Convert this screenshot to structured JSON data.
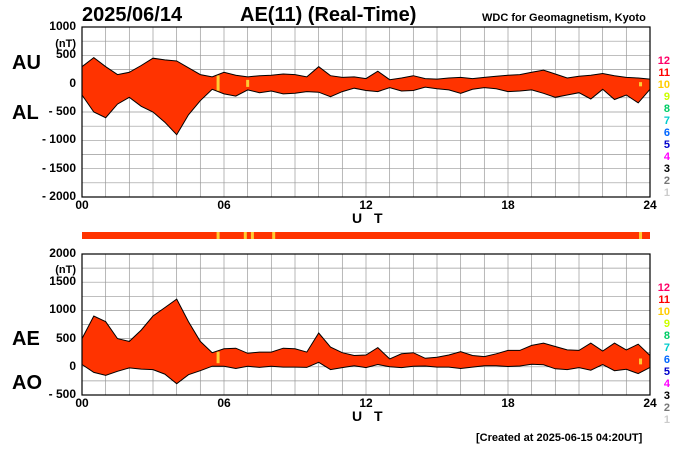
{
  "header": {
    "date": "2025/06/14",
    "title": "AE(11) (Real-Time)",
    "org": "WDC for Geomagnetism, Kyoto"
  },
  "footer": "[Created at 2025-06-15 04:20UT]",
  "colors": {
    "fill": "#ff3300",
    "highlight": "#ffcc33",
    "grid": "#999999",
    "legend": [
      "#cccccc",
      "#777777",
      "#000000",
      "#ff00ff",
      "#0000cc",
      "#0066ff",
      "#00cccc",
      "#00cc66",
      "#ccff00",
      "#ffcc00",
      "#ff0000",
      "#ff0066"
    ]
  },
  "legend": [
    "1",
    "2",
    "3",
    "4",
    "5",
    "6",
    "7",
    "8",
    "9",
    "10",
    "11",
    "12"
  ],
  "chart_data": [
    {
      "type": "area",
      "panel": "AU/AL",
      "series": [
        {
          "name": "AU",
          "x": [
            0,
            0.5,
            1,
            1.5,
            2,
            2.5,
            3,
            3.5,
            4,
            4.5,
            5,
            5.5,
            6,
            6.5,
            7,
            7.5,
            8,
            8.5,
            9,
            9.5,
            10,
            10.5,
            11,
            11.5,
            12,
            12.5,
            13,
            13.5,
            14,
            14.5,
            15,
            15.5,
            16,
            16.5,
            17,
            17.5,
            18,
            18.5,
            19,
            19.5,
            20,
            20.5,
            21,
            21.5,
            22,
            22.5,
            23,
            23.5,
            24
          ],
          "values": [
            300,
            460,
            300,
            160,
            200,
            320,
            450,
            420,
            400,
            280,
            160,
            120,
            200,
            150,
            120,
            140,
            150,
            170,
            160,
            120,
            300,
            140,
            110,
            120,
            90,
            220,
            70,
            100,
            140,
            90,
            80,
            100,
            110,
            90,
            110,
            130,
            150,
            160,
            200,
            240,
            170,
            100,
            130,
            150,
            180,
            140,
            110,
            100,
            80
          ]
        },
        {
          "name": "AL",
          "x": [
            0,
            0.5,
            1,
            1.5,
            2,
            2.5,
            3,
            3.5,
            4,
            4.5,
            5,
            5.5,
            6,
            6.5,
            7,
            7.5,
            8,
            8.5,
            9,
            9.5,
            10,
            10.5,
            11,
            11.5,
            12,
            12.5,
            13,
            13.5,
            14,
            14.5,
            15,
            15.5,
            16,
            16.5,
            17,
            17.5,
            18,
            18.5,
            19,
            19.5,
            20,
            20.5,
            21,
            21.5,
            22,
            22.5,
            23,
            23.5,
            24
          ],
          "values": [
            -200,
            -500,
            -600,
            -360,
            -240,
            -400,
            -500,
            -680,
            -900,
            -550,
            -300,
            -100,
            -180,
            -220,
            -110,
            -160,
            -130,
            -180,
            -170,
            -140,
            -150,
            -230,
            -140,
            -80,
            -120,
            -140,
            -70,
            -130,
            -120,
            -60,
            -90,
            -110,
            -170,
            -100,
            -70,
            -90,
            -140,
            -130,
            -110,
            -170,
            -240,
            -200,
            -160,
            -270,
            -100,
            -280,
            -200,
            -340,
            -100
          ]
        }
      ],
      "xlabel": "U T",
      "ylabel": "(nT)",
      "xlim": [
        0,
        24
      ],
      "ylim": [
        -2000,
        1000
      ],
      "yticks": [
        "1000",
        "500",
        "0",
        "- 500",
        "- 1000",
        "- 1500",
        "- 2000"
      ],
      "xticks": [
        "00",
        "06",
        "12",
        "18",
        "24"
      ],
      "highlights": [
        5.75,
        7.0,
        23.6
      ],
      "grid": true
    },
    {
      "type": "area",
      "panel": "AE/AO",
      "series": [
        {
          "name": "AE",
          "x": [
            0,
            0.5,
            1,
            1.5,
            2,
            2.5,
            3,
            3.5,
            4,
            4.5,
            5,
            5.5,
            6,
            6.5,
            7,
            7.5,
            8,
            8.5,
            9,
            9.5,
            10,
            10.5,
            11,
            11.5,
            12,
            12.5,
            13,
            13.5,
            14,
            14.5,
            15,
            15.5,
            16,
            16.5,
            17,
            17.5,
            18,
            18.5,
            19,
            19.5,
            20,
            20.5,
            21,
            21.5,
            22,
            22.5,
            23,
            23.5,
            24
          ],
          "values": [
            500,
            900,
            800,
            500,
            450,
            650,
            900,
            1050,
            1200,
            800,
            450,
            250,
            320,
            330,
            240,
            260,
            260,
            330,
            320,
            260,
            600,
            350,
            250,
            200,
            210,
            340,
            140,
            230,
            250,
            150,
            170,
            210,
            270,
            200,
            180,
            230,
            290,
            290,
            380,
            420,
            360,
            300,
            290,
            420,
            280,
            420,
            300,
            400,
            200
          ]
        },
        {
          "name": "AO",
          "x": [
            0,
            0.5,
            1,
            1.5,
            2,
            2.5,
            3,
            3.5,
            4,
            4.5,
            5,
            5.5,
            6,
            6.5,
            7,
            7.5,
            8,
            8.5,
            9,
            9.5,
            10,
            10.5,
            11,
            11.5,
            12,
            12.5,
            13,
            13.5,
            14,
            14.5,
            15,
            15.5,
            16,
            16.5,
            17,
            17.5,
            18,
            18.5,
            19,
            19.5,
            20,
            20.5,
            21,
            21.5,
            22,
            22.5,
            23,
            23.5,
            24
          ],
          "values": [
            40,
            -100,
            -150,
            -80,
            -20,
            -40,
            -50,
            -130,
            -300,
            -140,
            -70,
            10,
            10,
            -30,
            10,
            -10,
            10,
            -5,
            -5,
            -10,
            80,
            -50,
            -15,
            20,
            -15,
            40,
            0,
            -15,
            10,
            15,
            -5,
            -5,
            -30,
            -5,
            20,
            20,
            5,
            15,
            45,
            35,
            -35,
            -50,
            -15,
            -60,
            40,
            -70,
            -45,
            -120,
            -10
          ]
        }
      ],
      "xlabel": "U T",
      "ylabel": "(nT)",
      "xlim": [
        0,
        24
      ],
      "ylim": [
        -500,
        2000
      ],
      "yticks": [
        "2000",
        "1500",
        "1000",
        "500",
        "0",
        "- 500"
      ],
      "xticks": [
        "00",
        "06",
        "12",
        "18",
        "24"
      ],
      "highlights": [
        5.75,
        23.6
      ],
      "grid": true
    }
  ],
  "activity_bar": {
    "highlights": [
      5.75,
      6.9,
      7.2,
      8.1,
      23.6
    ]
  }
}
